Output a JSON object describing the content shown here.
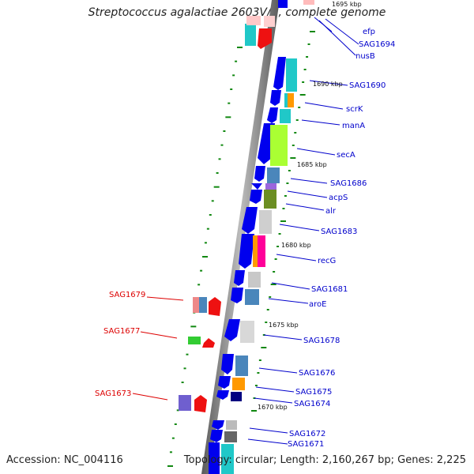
{
  "title": "Streptococcus agalactiae 2603V/R, complete genome",
  "footer": {
    "accession": "Accession: NC_004116",
    "summary": "Topology: circular; Length: 2,160,267 bp; Genes: 2,225"
  },
  "colors": {
    "backbone": "#7a7a7a",
    "label_forward": "#0000cc",
    "label_reverse": "#dd0000",
    "tick": "#118811"
  },
  "position_markers": [
    "1695 kbp",
    "1690 kbp",
    "1685 kbp",
    "1680 kbp",
    "1675 kbp",
    "1670 kbp"
  ],
  "gene_labels": {
    "forward": [
      "efp",
      "SAG1694",
      "nusB",
      "SAG1690",
      "scrK",
      "manA",
      "secA",
      "SAG1686",
      "acpS",
      "alr",
      "SAG1683",
      "recG",
      "SAG1681",
      "aroE",
      "SAG1678",
      "SAG1676",
      "SAG1675",
      "SAG1674",
      "SAG1672",
      "SAG1671"
    ],
    "reverse": [
      "SAG1679",
      "SAG1677",
      "SAG1673"
    ]
  }
}
